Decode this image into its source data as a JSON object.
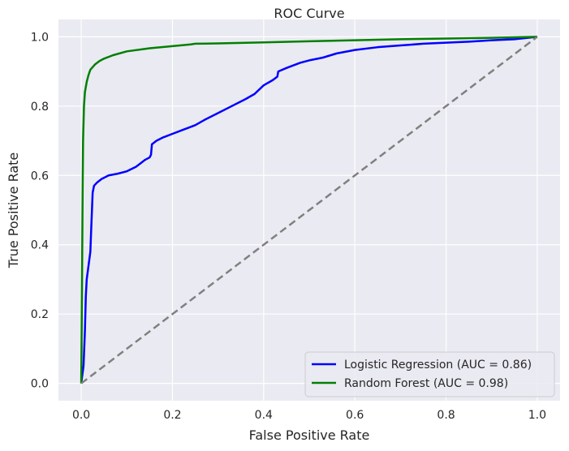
{
  "chart_data": {
    "type": "line",
    "title": "ROC Curve",
    "xlabel": "False Positive Rate",
    "ylabel": "True Positive Rate",
    "xlim": [
      -0.05,
      1.05
    ],
    "ylim": [
      -0.05,
      1.05
    ],
    "xticks": [
      0.0,
      0.2,
      0.4,
      0.6,
      0.8,
      1.0
    ],
    "xtick_labels": [
      "0.0",
      "0.2",
      "0.4",
      "0.6",
      "0.8",
      "1.0"
    ],
    "yticks": [
      0.0,
      0.2,
      0.4,
      0.6,
      0.8,
      1.0
    ],
    "ytick_labels": [
      "0.0",
      "0.2",
      "0.4",
      "0.6",
      "0.8",
      "1.0"
    ],
    "grid": true,
    "background": "#eaeaf2",
    "legend_position": "lower-right",
    "series": [
      {
        "name": "Logistic Regression (AUC = 0.86)",
        "color": "#0000ff",
        "style": "solid",
        "points": [
          [
            0.0,
            0.0
          ],
          [
            0.002,
            0.02
          ],
          [
            0.005,
            0.05
          ],
          [
            0.008,
            0.15
          ],
          [
            0.01,
            0.25
          ],
          [
            0.012,
            0.3
          ],
          [
            0.015,
            0.33
          ],
          [
            0.02,
            0.38
          ],
          [
            0.022,
            0.45
          ],
          [
            0.025,
            0.55
          ],
          [
            0.028,
            0.57
          ],
          [
            0.035,
            0.58
          ],
          [
            0.045,
            0.59
          ],
          [
            0.06,
            0.6
          ],
          [
            0.08,
            0.605
          ],
          [
            0.1,
            0.612
          ],
          [
            0.12,
            0.625
          ],
          [
            0.13,
            0.635
          ],
          [
            0.14,
            0.645
          ],
          [
            0.15,
            0.652
          ],
          [
            0.153,
            0.66
          ],
          [
            0.155,
            0.69
          ],
          [
            0.165,
            0.7
          ],
          [
            0.18,
            0.71
          ],
          [
            0.2,
            0.72
          ],
          [
            0.22,
            0.73
          ],
          [
            0.25,
            0.745
          ],
          [
            0.27,
            0.76
          ],
          [
            0.3,
            0.78
          ],
          [
            0.33,
            0.8
          ],
          [
            0.36,
            0.82
          ],
          [
            0.38,
            0.835
          ],
          [
            0.4,
            0.86
          ],
          [
            0.42,
            0.875
          ],
          [
            0.43,
            0.885
          ],
          [
            0.432,
            0.9
          ],
          [
            0.45,
            0.91
          ],
          [
            0.48,
            0.925
          ],
          [
            0.5,
            0.932
          ],
          [
            0.53,
            0.94
          ],
          [
            0.56,
            0.952
          ],
          [
            0.6,
            0.962
          ],
          [
            0.65,
            0.97
          ],
          [
            0.7,
            0.975
          ],
          [
            0.75,
            0.98
          ],
          [
            0.8,
            0.983
          ],
          [
            0.85,
            0.986
          ],
          [
            0.9,
            0.99
          ],
          [
            0.95,
            0.993
          ],
          [
            1.0,
            1.0
          ]
        ]
      },
      {
        "name": "Random Forest (AUC = 0.98)",
        "color": "#008000",
        "style": "solid",
        "points": [
          [
            0.0,
            0.0
          ],
          [
            0.001,
            0.15
          ],
          [
            0.002,
            0.35
          ],
          [
            0.003,
            0.55
          ],
          [
            0.004,
            0.7
          ],
          [
            0.006,
            0.8
          ],
          [
            0.008,
            0.84
          ],
          [
            0.012,
            0.87
          ],
          [
            0.016,
            0.89
          ],
          [
            0.02,
            0.905
          ],
          [
            0.03,
            0.92
          ],
          [
            0.04,
            0.93
          ],
          [
            0.05,
            0.937
          ],
          [
            0.07,
            0.947
          ],
          [
            0.1,
            0.958
          ],
          [
            0.15,
            0.967
          ],
          [
            0.2,
            0.973
          ],
          [
            0.24,
            0.978
          ],
          [
            0.25,
            0.98
          ],
          [
            0.3,
            0.981
          ],
          [
            0.4,
            0.984
          ],
          [
            0.5,
            0.987
          ],
          [
            0.6,
            0.99
          ],
          [
            0.7,
            0.993
          ],
          [
            0.8,
            0.995
          ],
          [
            0.9,
            0.997
          ],
          [
            1.0,
            1.0
          ]
        ]
      },
      {
        "name": "",
        "color": "#808080",
        "style": "dashed",
        "points": [
          [
            0.0,
            0.0
          ],
          [
            1.0,
            1.0
          ]
        ]
      }
    ]
  }
}
